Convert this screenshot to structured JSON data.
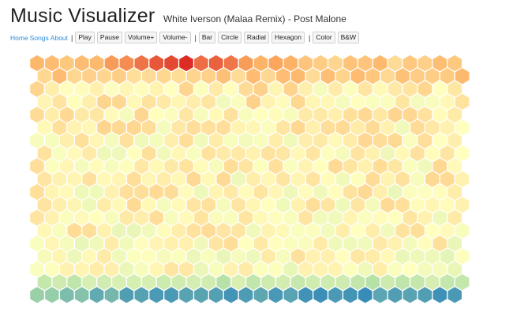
{
  "header": {
    "app_title": "Music Visualizer",
    "song_title": "White Iverson (Malaa Remix) - Post Malone"
  },
  "nav": {
    "home": "Home",
    "songs": "Songs",
    "about": "About",
    "separator": "|"
  },
  "toolbar": {
    "play": "Play",
    "pause": "Pause",
    "volume_up": "Volume+",
    "volume_down": "Volume-",
    "bar": "Bar",
    "circle": "Circle",
    "radial": "Radial",
    "hexagon": "Hexagon",
    "color": "Color",
    "bw": "B&W"
  },
  "visualizer": {
    "mode": "hexagon",
    "color_scheme": "spectral",
    "grid": {
      "columns": 30,
      "rows": 19
    },
    "palette": [
      "#d7191c",
      "#fdae61",
      "#ffffbf",
      "#abdda4",
      "#2b83ba"
    ]
  }
}
